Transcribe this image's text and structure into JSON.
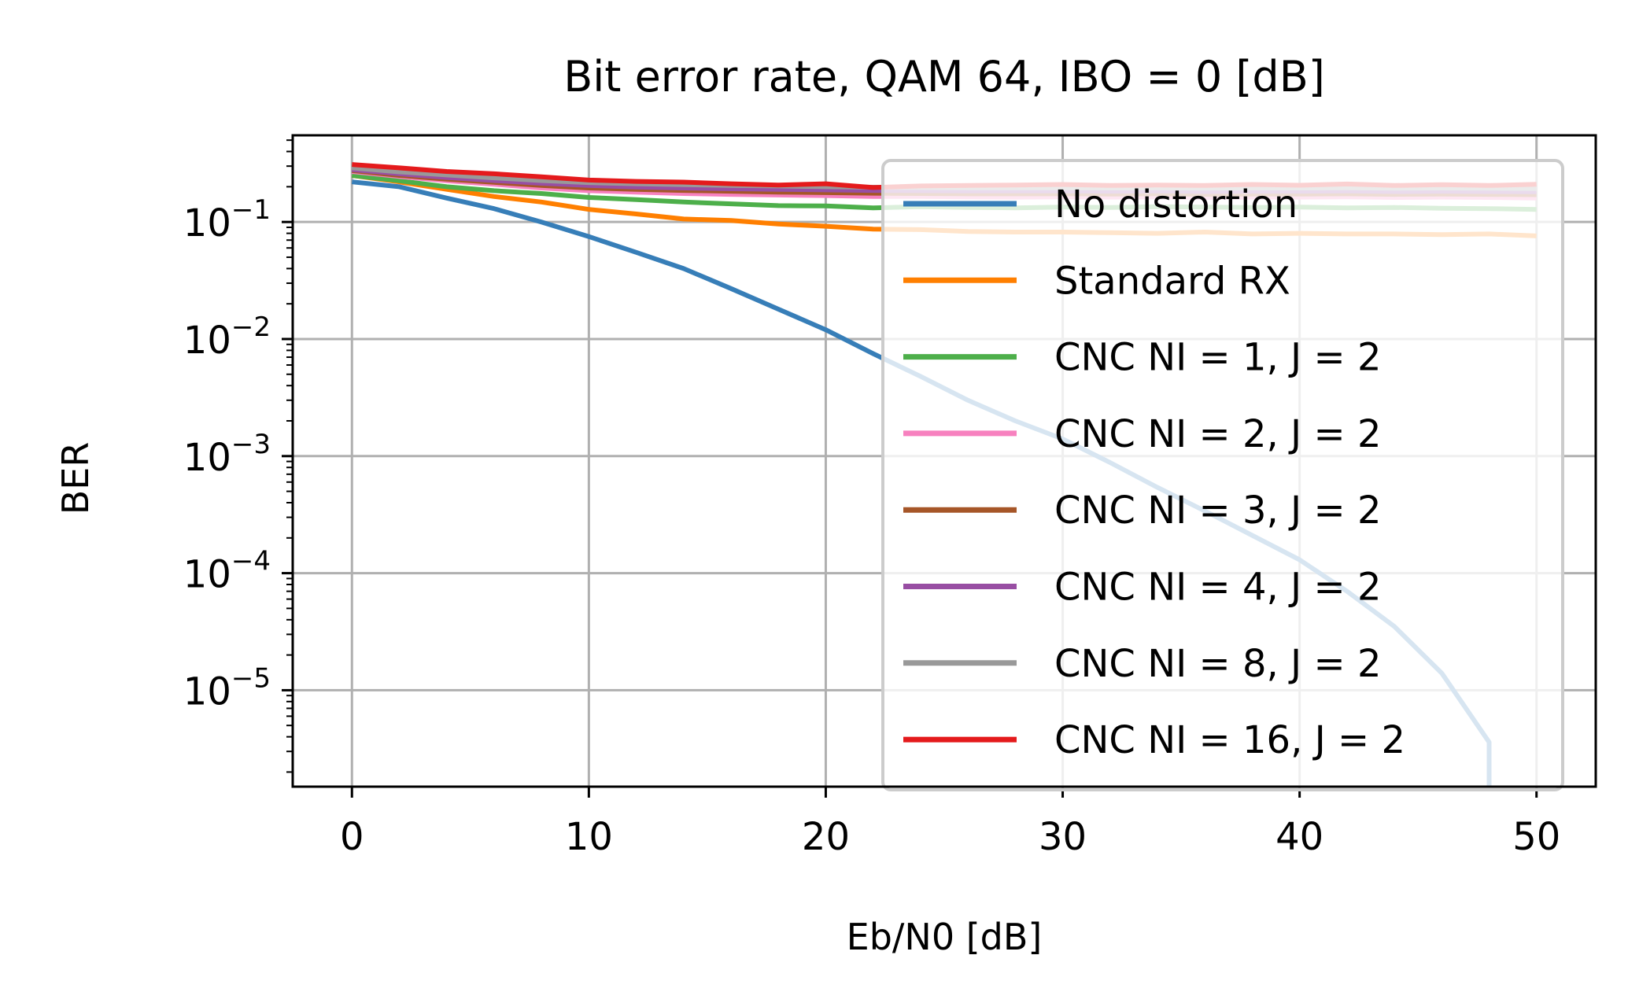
{
  "chart_data": {
    "type": "line",
    "title": "Bit error rate, QAM 64, IBO = 0 [dB]",
    "xlabel": "Eb/N0 [dB]",
    "ylabel": "BER",
    "xlim": [
      -2.5,
      52.5
    ],
    "ylim": [
      1.5e-06,
      0.55
    ],
    "yscale": "log",
    "grid": true,
    "legend_position": "right",
    "xticks": [
      {
        "value": 0,
        "label": "0"
      },
      {
        "value": 10,
        "label": "10"
      },
      {
        "value": 20,
        "label": "20"
      },
      {
        "value": 30,
        "label": "30"
      },
      {
        "value": 40,
        "label": "40"
      },
      {
        "value": 50,
        "label": "50"
      }
    ],
    "yticks": [
      {
        "value": 0.1,
        "base": "10",
        "exp": "−1"
      },
      {
        "value": 0.01,
        "base": "10",
        "exp": "−2"
      },
      {
        "value": 0.001,
        "base": "10",
        "exp": "−3"
      },
      {
        "value": 0.0001,
        "base": "10",
        "exp": "−4"
      },
      {
        "value": 1e-05,
        "base": "10",
        "exp": "−5"
      }
    ],
    "x": [
      0,
      2,
      4,
      6,
      8,
      10,
      12,
      14,
      16,
      18,
      20,
      22,
      24,
      26,
      28,
      30,
      32,
      34,
      36,
      38,
      40,
      42,
      44,
      46,
      48,
      50
    ],
    "series": [
      {
        "name": "No distortion",
        "color": "#377eb8",
        "values": [
          0.22,
          0.2,
          0.16,
          0.13,
          0.1,
          0.075,
          0.055,
          0.04,
          0.027,
          0.018,
          0.012,
          0.0075,
          0.0048,
          0.003,
          0.002,
          0.0014,
          0.00088,
          0.00054,
          0.00034,
          0.00021,
          0.00013,
          7e-05,
          3.5e-05,
          1.4e-05,
          3.6e-06,
          null
        ]
      },
      {
        "name": "Standard RX",
        "color": "#ff7f00",
        "values": [
          0.25,
          0.22,
          0.19,
          0.165,
          0.148,
          0.128,
          0.117,
          0.106,
          0.103,
          0.096,
          0.092,
          0.087,
          0.086,
          0.083,
          0.082,
          0.082,
          0.081,
          0.08,
          0.082,
          0.079,
          0.08,
          0.079,
          0.079,
          0.078,
          0.079,
          0.076
        ]
      },
      {
        "name": "CNC NI = 1, J = 2",
        "color": "#4daf4a",
        "values": [
          0.25,
          0.225,
          0.2,
          0.185,
          0.175,
          0.162,
          0.155,
          0.148,
          0.143,
          0.138,
          0.137,
          0.132,
          0.135,
          0.133,
          0.132,
          0.134,
          0.133,
          0.135,
          0.134,
          0.133,
          0.134,
          0.132,
          0.133,
          0.131,
          0.13,
          0.128
        ]
      },
      {
        "name": "CNC NI = 2, J = 2",
        "color": "#f781bf",
        "values": [
          0.27,
          0.245,
          0.225,
          0.21,
          0.195,
          0.185,
          0.18,
          0.175,
          0.172,
          0.17,
          0.168,
          0.165,
          0.165,
          0.164,
          0.163,
          0.164,
          0.163,
          0.164,
          0.162,
          0.163,
          0.163,
          0.164,
          0.162,
          0.163,
          0.162,
          0.16
        ]
      },
      {
        "name": "CNC NI = 3, J = 2",
        "color": "#a65628",
        "values": [
          0.275,
          0.25,
          0.232,
          0.218,
          0.205,
          0.195,
          0.19,
          0.186,
          0.183,
          0.18,
          0.178,
          0.176,
          0.175,
          0.174,
          0.174,
          0.174,
          0.173,
          0.174,
          0.172,
          0.173,
          0.173,
          0.174,
          0.172,
          0.173,
          0.172,
          0.171
        ]
      },
      {
        "name": "CNC NI = 4, J = 2",
        "color": "#984ea3",
        "values": [
          0.28,
          0.258,
          0.24,
          0.226,
          0.214,
          0.205,
          0.199,
          0.195,
          0.192,
          0.19,
          0.188,
          0.186,
          0.185,
          0.184,
          0.184,
          0.184,
          0.183,
          0.184,
          0.182,
          0.183,
          0.183,
          0.184,
          0.182,
          0.183,
          0.182,
          0.181
        ]
      },
      {
        "name": "CNC NI = 8, J = 2",
        "color": "#999999",
        "values": [
          0.29,
          0.268,
          0.252,
          0.238,
          0.226,
          0.217,
          0.212,
          0.208,
          0.205,
          0.203,
          0.2,
          0.198,
          0.197,
          0.196,
          0.196,
          0.196,
          0.195,
          0.196,
          0.194,
          0.195,
          0.195,
          0.196,
          0.194,
          0.195,
          0.194,
          0.193
        ]
      },
      {
        "name": "CNC NI = 16, J = 2",
        "color": "#e41a1c",
        "values": [
          0.31,
          0.29,
          0.27,
          0.258,
          0.243,
          0.228,
          0.222,
          0.219,
          0.212,
          0.207,
          0.212,
          0.197,
          0.203,
          0.205,
          0.207,
          0.209,
          0.205,
          0.207,
          0.205,
          0.209,
          0.206,
          0.211,
          0.205,
          0.208,
          0.205,
          0.21
        ]
      }
    ]
  }
}
